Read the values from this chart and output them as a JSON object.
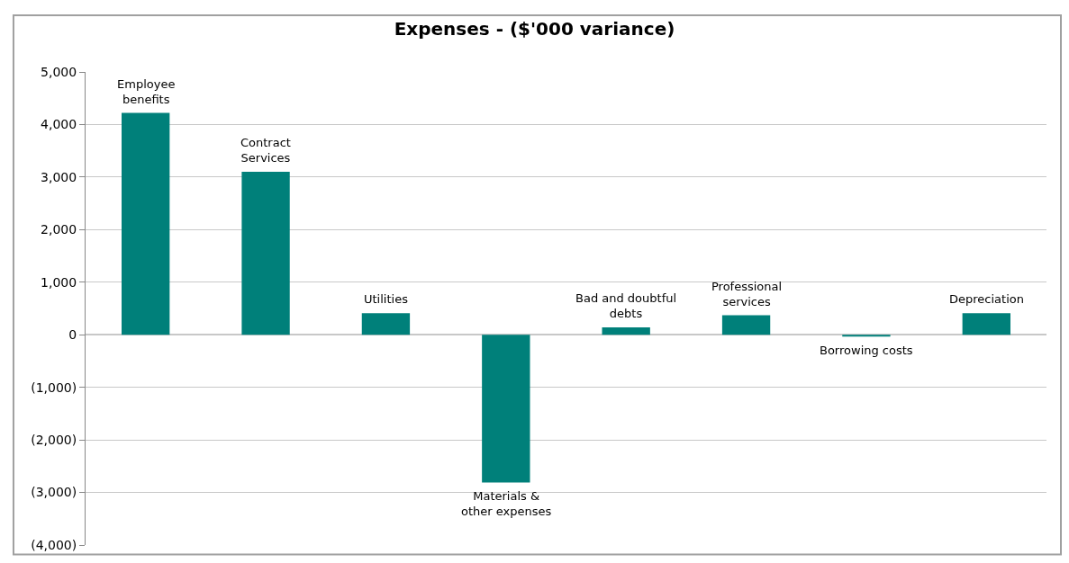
{
  "chart_data": {
    "type": "bar",
    "title": "Expenses - ($'000 variance)",
    "categories": [
      "Employee benefits",
      "Contract Services",
      "Utilities",
      "Materials & other expenses",
      "Bad and doubtful debts",
      "Professional services",
      "Borrowing costs",
      "Depreciation"
    ],
    "values": [
      4220,
      3100,
      410,
      -2810,
      140,
      370,
      -35,
      410
    ],
    "color": "#00807a",
    "ylim": [
      -4000,
      5000
    ],
    "yticks": [
      {
        "value": -4000,
        "label": "(4,000)"
      },
      {
        "value": -3000,
        "label": "(3,000)"
      },
      {
        "value": -2000,
        "label": "(2,000)"
      },
      {
        "value": -1000,
        "label": "(1,000)"
      },
      0,
      {
        "value": 1000,
        "label": "1,000"
      },
      {
        "value": 2000,
        "label": "2,000"
      },
      {
        "value": 3000,
        "label": "3,000"
      },
      {
        "value": 4000,
        "label": "4,000"
      },
      {
        "value": 5000,
        "label": "5,000"
      }
    ],
    "grid": "y",
    "tick_labels": "y",
    "legend": false
  }
}
